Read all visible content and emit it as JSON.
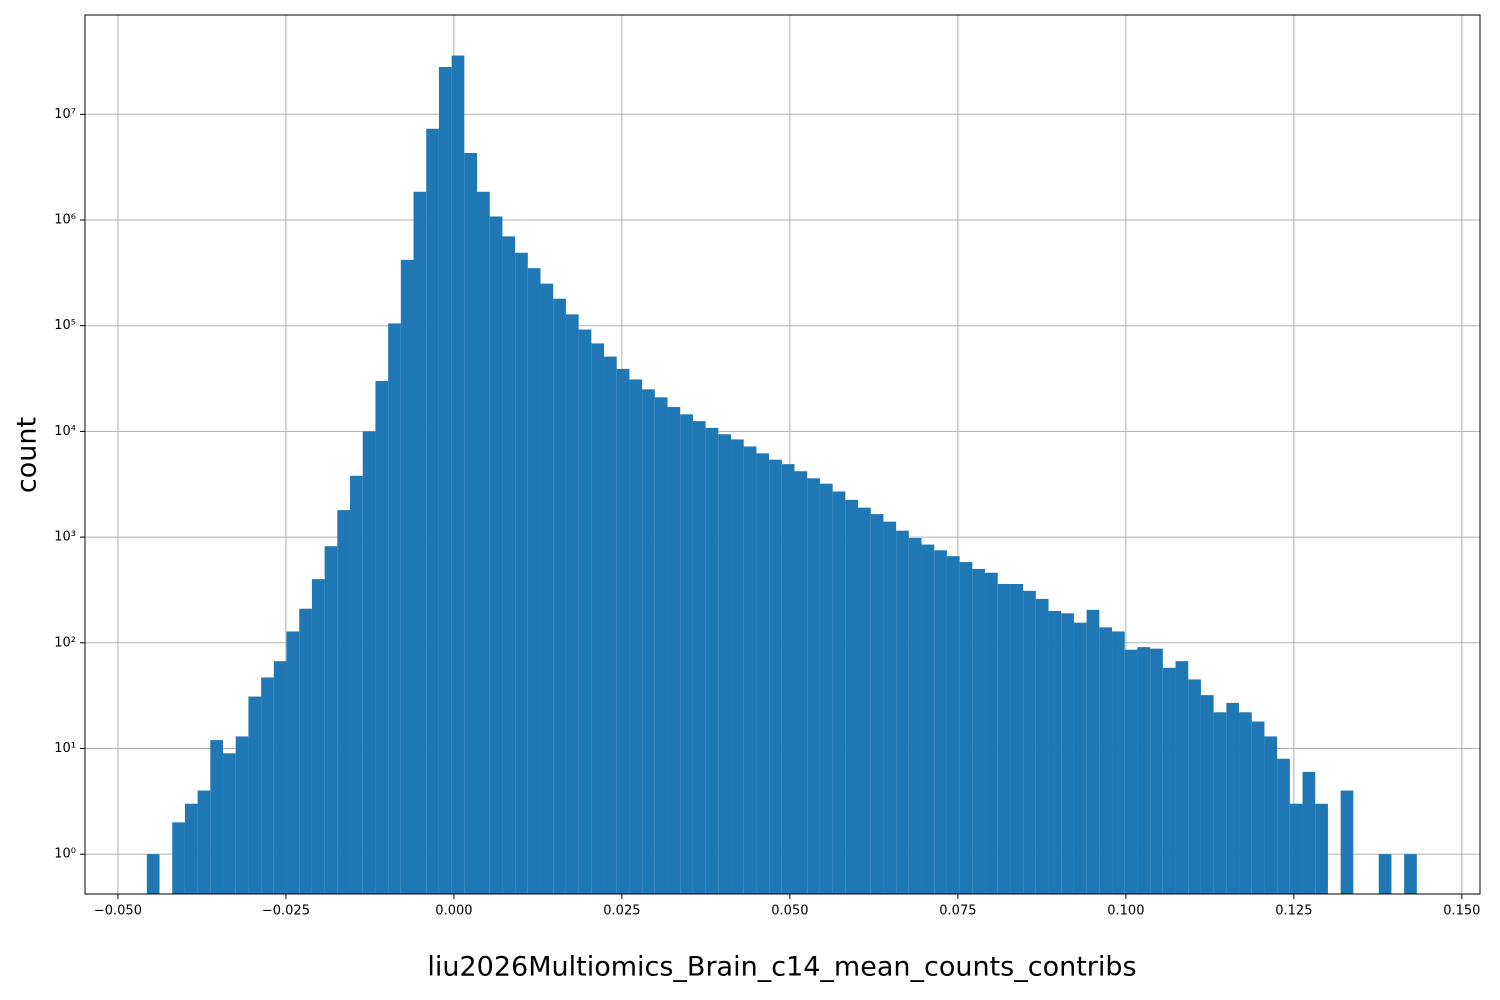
{
  "chart_data": {
    "type": "histogram",
    "xlabel": "liu2026Multiomics_Brain_c14_mean_counts_contribs",
    "ylabel": "count",
    "color": "#1f77b4",
    "log_y": true,
    "grid": true,
    "bins": [
      -0.0457,
      -0.04381,
      -0.04192,
      -0.04003,
      -0.03814,
      -0.03625,
      -0.03436,
      -0.03247,
      -0.03058,
      -0.02869,
      -0.0268,
      -0.02491,
      -0.02302,
      -0.02113,
      -0.01924,
      -0.01735,
      -0.01546,
      -0.01357,
      -0.01168,
      -0.00979,
      -0.0079,
      -0.00601,
      -0.00412,
      -0.00223,
      -0.00034,
      0.00155,
      0.00344,
      0.00533,
      0.00722,
      0.00911,
      0.011,
      0.01289,
      0.01478,
      0.01667,
      0.01856,
      0.02045,
      0.02234,
      0.02423,
      0.02612,
      0.02801,
      0.0299,
      0.03179,
      0.03368,
      0.03557,
      0.03746,
      0.03935,
      0.04124,
      0.04313,
      0.04502,
      0.04691,
      0.0488,
      0.05069,
      0.05258,
      0.05447,
      0.05636,
      0.05825,
      0.06014,
      0.06203,
      0.06392,
      0.06581,
      0.0677,
      0.06959,
      0.07148,
      0.07337,
      0.07526,
      0.07715,
      0.07904,
      0.08093,
      0.08282,
      0.08471,
      0.0866,
      0.08849,
      0.09038,
      0.09227,
      0.09416,
      0.09605,
      0.09794,
      0.09983,
      0.10172,
      0.10361,
      0.1055,
      0.10739,
      0.10928,
      0.11117,
      0.11306,
      0.11495,
      0.11684,
      0.11873,
      0.12062,
      0.12251,
      0.1244,
      0.12629,
      0.12818,
      0.13007,
      0.13196,
      0.13385,
      0.13574,
      0.13763,
      0.13952,
      0.14141,
      0.1433
    ],
    "values": [
      1,
      0,
      2,
      3,
      4,
      12,
      9,
      13,
      31,
      47,
      67,
      128,
      210,
      400,
      820,
      1800,
      3800,
      10000,
      30000,
      105000,
      420000,
      1850000,
      7300000,
      28000000,
      36000000,
      4300000,
      1850000,
      1080000,
      700000,
      490000,
      350000,
      250000,
      180000,
      128000,
      92000,
      68000,
      51000,
      39000,
      31000,
      25000,
      21000,
      17000,
      14500,
      12500,
      10800,
      9400,
      8400,
      7200,
      6200,
      5400,
      4900,
      4200,
      3600,
      3200,
      2700,
      2250,
      1900,
      1650,
      1400,
      1150,
      980,
      850,
      750,
      660,
      580,
      500,
      460,
      360,
      360,
      310,
      260,
      200,
      190,
      155,
      205,
      140,
      128,
      86,
      91,
      88,
      58,
      67,
      45,
      32,
      22,
      27,
      22,
      18,
      13,
      8,
      3,
      6,
      3,
      0,
      4,
      0,
      0,
      1,
      0,
      1
    ],
    "xlim": [
      -0.0549,
      0.1527
    ],
    "xticks": [
      {
        "value": -0.05,
        "label": "−0.050"
      },
      {
        "value": -0.025,
        "label": "−0.025"
      },
      {
        "value": 0,
        "label": "0.000"
      },
      {
        "value": 0.025,
        "label": "0.025"
      },
      {
        "value": 0.05,
        "label": "0.050"
      },
      {
        "value": 0.075,
        "label": "0.075"
      },
      {
        "value": 0.1,
        "label": "0.100"
      },
      {
        "value": 0.125,
        "label": "0.125"
      },
      {
        "value": 0.15,
        "label": "0.150"
      }
    ],
    "ylim": [
      0.42,
      87000000
    ],
    "yticks": [
      {
        "value": 1,
        "label": "10⁰"
      },
      {
        "value": 10,
        "label": "10¹"
      },
      {
        "value": 100,
        "label": "10²"
      },
      {
        "value": 1000,
        "label": "10³"
      },
      {
        "value": 10000,
        "label": "10⁴"
      },
      {
        "value": 100000,
        "label": "10⁵"
      },
      {
        "value": 1000000,
        "label": "10⁶"
      },
      {
        "value": 10000000,
        "label": "10⁷"
      }
    ]
  }
}
